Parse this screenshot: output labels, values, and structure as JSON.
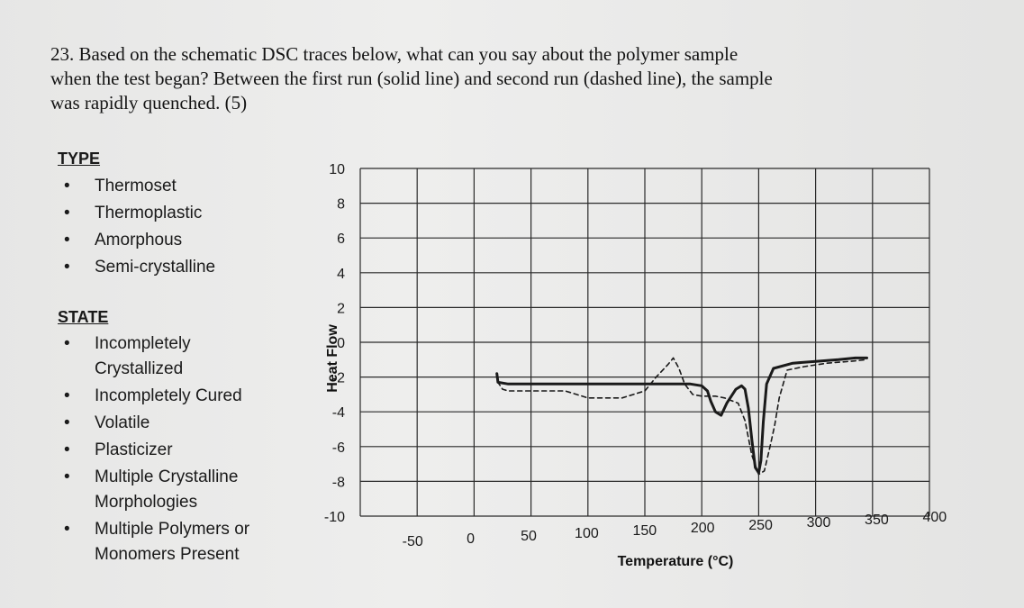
{
  "question": {
    "lines": [
      "23. Based on the schematic DSC traces below,  what can you say about the polymer sample",
      "when the test began? Between the first run (solid line) and second run (dashed line), the sample",
      "was rapidly quenched. (5)"
    ]
  },
  "type_section": {
    "heading": "TYPE",
    "items": [
      "Thermoset",
      "Thermoplastic",
      "Amorphous",
      "Semi-crystalline"
    ]
  },
  "state_section": {
    "heading": "STATE",
    "items": [
      [
        "Incompletely",
        "Crystallized"
      ],
      [
        "Incompletely Cured"
      ],
      [
        "Volatile"
      ],
      [
        "Plasticizer"
      ],
      [
        "Multiple Crystalline",
        "Morphologies"
      ],
      [
        "Multiple Polymers or",
        "Monomers Present"
      ]
    ]
  },
  "bullet_glyph": "•",
  "colors": {
    "grid": "#2a2a2a",
    "trace": "#1a1a1a",
    "paper": "#ebebea"
  },
  "chart_data": {
    "type": "line",
    "title": "",
    "xlabel": "Temperature (°C)",
    "ylabel": "Heat Flow",
    "xlim": [
      -100,
      400
    ],
    "ylim": [
      -10,
      10
    ],
    "x_ticks": [
      "-50",
      "0",
      "50",
      "100",
      "150",
      "200",
      "250",
      "300",
      "350",
      "400"
    ],
    "y_ticks": [
      "10",
      "8",
      "6",
      "4",
      "2",
      "0",
      "-2",
      "-4",
      "-6",
      "-8",
      "-10"
    ],
    "grid": true,
    "series": [
      {
        "style": "solid",
        "points": [
          [
            20,
            -1.8
          ],
          [
            21,
            -2.3
          ],
          [
            30,
            -2.4
          ],
          [
            40,
            -2.4
          ],
          [
            60,
            -2.4
          ],
          [
            80,
            -2.4
          ],
          [
            100,
            -2.4
          ],
          [
            120,
            -2.4
          ],
          [
            140,
            -2.4
          ],
          [
            150,
            -2.4
          ],
          [
            160,
            -2.4
          ],
          [
            170,
            -2.4
          ],
          [
            180,
            -2.4
          ],
          [
            190,
            -2.4
          ],
          [
            200,
            -2.5
          ],
          [
            205,
            -2.8
          ],
          [
            208,
            -3.4
          ],
          [
            212,
            -4.0
          ],
          [
            217,
            -4.2
          ],
          [
            222,
            -3.5
          ],
          [
            230,
            -2.7
          ],
          [
            235,
            -2.5
          ],
          [
            238,
            -2.7
          ],
          [
            241,
            -3.8
          ],
          [
            244,
            -5.6
          ],
          [
            247,
            -7.2
          ],
          [
            250,
            -7.5
          ],
          [
            252,
            -6.8
          ],
          [
            254,
            -4.6
          ],
          [
            257,
            -2.4
          ],
          [
            263,
            -1.5
          ],
          [
            280,
            -1.2
          ],
          [
            300,
            -1.1
          ],
          [
            320,
            -1.0
          ],
          [
            335,
            -0.9
          ],
          [
            345,
            -0.9
          ]
        ]
      },
      {
        "style": "dashed",
        "points": [
          [
            20,
            -1.8
          ],
          [
            21,
            -2.3
          ],
          [
            25,
            -2.7
          ],
          [
            30,
            -2.8
          ],
          [
            60,
            -2.8
          ],
          [
            80,
            -2.8
          ],
          [
            90,
            -3.0
          ],
          [
            100,
            -3.2
          ],
          [
            110,
            -3.2
          ],
          [
            120,
            -3.2
          ],
          [
            130,
            -3.2
          ],
          [
            150,
            -2.8
          ],
          [
            160,
            -2.0
          ],
          [
            170,
            -1.3
          ],
          [
            175,
            -0.9
          ],
          [
            180,
            -1.5
          ],
          [
            185,
            -2.4
          ],
          [
            192,
            -3.0
          ],
          [
            200,
            -3.1
          ],
          [
            212,
            -3.1
          ],
          [
            220,
            -3.2
          ],
          [
            232,
            -3.5
          ],
          [
            238,
            -4.5
          ],
          [
            244,
            -6.5
          ],
          [
            250,
            -7.6
          ],
          [
            255,
            -7.4
          ],
          [
            260,
            -6.0
          ],
          [
            264,
            -4.8
          ],
          [
            268,
            -3.2
          ],
          [
            275,
            -1.6
          ],
          [
            290,
            -1.4
          ],
          [
            310,
            -1.2
          ],
          [
            330,
            -1.1
          ],
          [
            345,
            -1.0
          ]
        ]
      }
    ]
  }
}
